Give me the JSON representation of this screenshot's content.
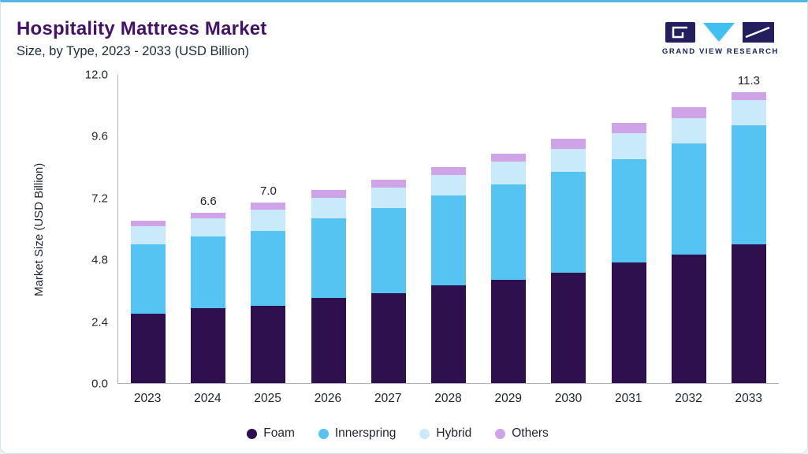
{
  "header": {
    "title": "Hospitality Mattress Market",
    "subtitle": "Size, by Type, 2023 - 2033 (USD Billion)",
    "brand": "GRAND VIEW RESEARCH"
  },
  "brand_colors": {
    "dark": "#241d5e",
    "cyan": "#3fc0f0",
    "accent_top_bar": "#55b6e4"
  },
  "chart_data": {
    "type": "bar",
    "stacked": true,
    "title": "Hospitality Mattress Market Size, by Type, 2023 - 2033 (USD Billion)",
    "xlabel": "",
    "ylabel": "Market Size (USD Billion)",
    "ylim": [
      0,
      12
    ],
    "yticks": [
      0.0,
      2.4,
      4.8,
      7.2,
      9.6,
      12.0
    ],
    "grid": false,
    "legend_position": "bottom",
    "categories": [
      "2023",
      "2024",
      "2025",
      "2026",
      "2027",
      "2028",
      "2029",
      "2030",
      "2031",
      "2032",
      "2033"
    ],
    "series": [
      {
        "name": "Foam",
        "color": "#2f104e",
        "values": [
          2.7,
          2.9,
          3.0,
          3.3,
          3.5,
          3.8,
          4.0,
          4.3,
          4.7,
          5.0,
          5.4
        ]
      },
      {
        "name": "Innerspring",
        "color": "#55c4f2",
        "values": [
          2.7,
          2.8,
          2.9,
          3.1,
          3.3,
          3.5,
          3.7,
          3.9,
          4.0,
          4.3,
          4.6
        ]
      },
      {
        "name": "Hybrid",
        "color": "#c9eafb",
        "values": [
          0.7,
          0.7,
          0.85,
          0.8,
          0.8,
          0.8,
          0.9,
          0.9,
          1.0,
          1.0,
          1.0
        ]
      },
      {
        "name": "Others",
        "color": "#cea3e8",
        "values": [
          0.2,
          0.2,
          0.25,
          0.3,
          0.3,
          0.3,
          0.3,
          0.4,
          0.4,
          0.4,
          0.3
        ]
      }
    ],
    "totals": [
      6.3,
      6.6,
      7.0,
      7.5,
      7.9,
      8.4,
      8.9,
      9.5,
      10.1,
      10.7,
      11.3
    ],
    "total_labels": [
      "",
      "6.6",
      "7.0",
      "",
      "",
      "",
      "",
      "",
      "",
      "",
      "11.3"
    ]
  }
}
